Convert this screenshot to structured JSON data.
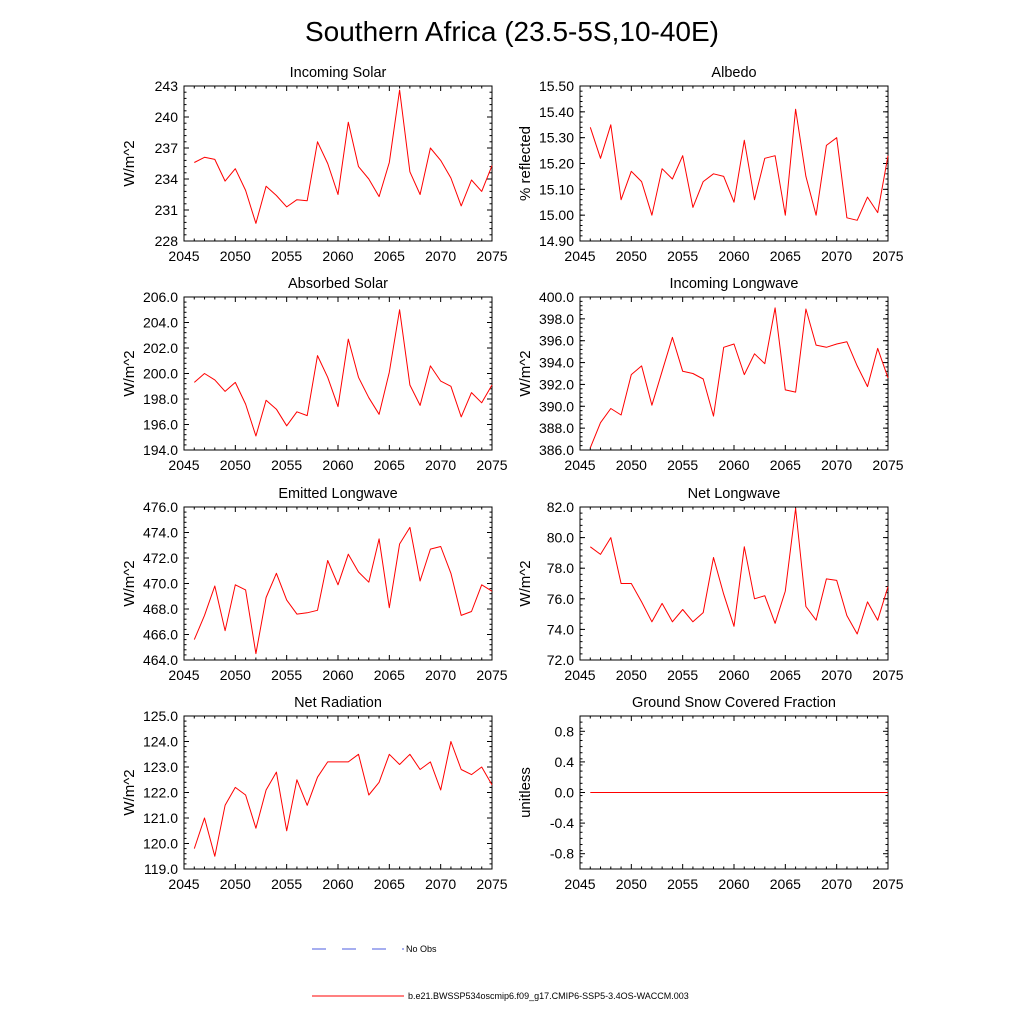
{
  "title": "Southern Africa (23.5-5S,10-40E)",
  "colors": {
    "model": "#ff0000",
    "obs": "#4d5de0",
    "axis": "#000000"
  },
  "legend": {
    "obs_label": "No Obs",
    "model_label": "b.e21.BWSSP534oscmip6.f09_g17.CMIP6-SSP5-3.4OS-WACCM.003"
  },
  "chart_data": [
    {
      "type": "line",
      "title": "Incoming Solar",
      "xlabel": "",
      "ylabel": "W/m^2",
      "xlim": [
        2045,
        2075
      ],
      "xticks": [
        2045,
        2050,
        2055,
        2060,
        2065,
        2070,
        2075
      ],
      "ylim": [
        228,
        243
      ],
      "yticks": [
        "228",
        "231",
        "234",
        "237",
        "240",
        "243"
      ],
      "x": [
        2046,
        2047,
        2048,
        2049,
        2050,
        2051,
        2052,
        2053,
        2054,
        2055,
        2056,
        2057,
        2058,
        2059,
        2060,
        2061,
        2062,
        2063,
        2064,
        2065,
        2066,
        2067,
        2068,
        2069,
        2070,
        2071,
        2072,
        2073,
        2074,
        2075
      ],
      "series": [
        {
          "name": "b.e21.BWSSP534oscmip6.f09_g17.CMIP6-SSP5-3.4OS-WACCM.003",
          "values": [
            235.6,
            236.1,
            235.9,
            233.8,
            235.0,
            232.9,
            229.7,
            233.3,
            232.4,
            231.3,
            232.0,
            231.9,
            237.6,
            235.5,
            232.5,
            239.5,
            235.2,
            234.0,
            232.3,
            235.6,
            242.6,
            234.7,
            232.5,
            237.0,
            235.8,
            234.1,
            231.4,
            233.9,
            232.8,
            235.3
          ]
        }
      ]
    },
    {
      "type": "line",
      "title": "Albedo",
      "xlabel": "",
      "ylabel": "% reflected",
      "xlim": [
        2045,
        2075
      ],
      "xticks": [
        2045,
        2050,
        2055,
        2060,
        2065,
        2070,
        2075
      ],
      "ylim": [
        14.9,
        15.5
      ],
      "yticks": [
        "14.90",
        "15.00",
        "15.10",
        "15.20",
        "15.30",
        "15.40",
        "15.50"
      ],
      "x": [
        2046,
        2047,
        2048,
        2049,
        2050,
        2051,
        2052,
        2053,
        2054,
        2055,
        2056,
        2057,
        2058,
        2059,
        2060,
        2061,
        2062,
        2063,
        2064,
        2065,
        2066,
        2067,
        2068,
        2069,
        2070,
        2071,
        2072,
        2073,
        2074,
        2075
      ],
      "series": [
        {
          "name": "b.e21.BWSSP534oscmip6.f09_g17.CMIP6-SSP5-3.4OS-WACCM.003",
          "values": [
            15.34,
            15.22,
            15.35,
            15.06,
            15.17,
            15.13,
            15.0,
            15.18,
            15.14,
            15.23,
            15.03,
            15.13,
            15.16,
            15.15,
            15.05,
            15.29,
            15.06,
            15.22,
            15.23,
            15.0,
            15.41,
            15.15,
            15.0,
            15.27,
            15.3,
            14.99,
            14.98,
            15.07,
            15.01,
            15.23
          ]
        }
      ]
    },
    {
      "type": "line",
      "title": "Absorbed Solar",
      "xlabel": "",
      "ylabel": "W/m^2",
      "xlim": [
        2045,
        2075
      ],
      "xticks": [
        2045,
        2050,
        2055,
        2060,
        2065,
        2070,
        2075
      ],
      "ylim": [
        194,
        206
      ],
      "yticks": [
        "194.0",
        "196.0",
        "198.0",
        "200.0",
        "202.0",
        "204.0",
        "206.0"
      ],
      "x": [
        2046,
        2047,
        2048,
        2049,
        2050,
        2051,
        2052,
        2053,
        2054,
        2055,
        2056,
        2057,
        2058,
        2059,
        2060,
        2061,
        2062,
        2063,
        2064,
        2065,
        2066,
        2067,
        2068,
        2069,
        2070,
        2071,
        2072,
        2073,
        2074,
        2075
      ],
      "series": [
        {
          "name": "b.e21.BWSSP534oscmip6.f09_g17.CMIP6-SSP5-3.4OS-WACCM.003",
          "values": [
            199.3,
            200.0,
            199.5,
            198.6,
            199.3,
            197.6,
            195.1,
            197.9,
            197.2,
            195.9,
            197.0,
            196.7,
            201.4,
            199.7,
            197.4,
            202.7,
            199.7,
            198.1,
            196.8,
            200.1,
            205.0,
            199.1,
            197.5,
            200.6,
            199.4,
            199.0,
            196.6,
            198.5,
            197.7,
            199.1
          ]
        }
      ]
    },
    {
      "type": "line",
      "title": "Incoming Longwave",
      "xlabel": "",
      "ylabel": "W/m^2",
      "xlim": [
        2045,
        2075
      ],
      "xticks": [
        2045,
        2050,
        2055,
        2060,
        2065,
        2070,
        2075
      ],
      "ylim": [
        386,
        400
      ],
      "yticks": [
        "386.0",
        "388.0",
        "390.0",
        "392.0",
        "394.0",
        "396.0",
        "398.0",
        "400.0"
      ],
      "x": [
        2046,
        2047,
        2048,
        2049,
        2050,
        2051,
        2052,
        2053,
        2054,
        2055,
        2056,
        2057,
        2058,
        2059,
        2060,
        2061,
        2062,
        2063,
        2064,
        2065,
        2066,
        2067,
        2068,
        2069,
        2070,
        2071,
        2072,
        2073,
        2074,
        2075
      ],
      "series": [
        {
          "name": "b.e21.BWSSP534oscmip6.f09_g17.CMIP6-SSP5-3.4OS-WACCM.003",
          "values": [
            386.2,
            388.5,
            389.8,
            389.2,
            392.9,
            393.7,
            390.1,
            393.2,
            396.3,
            393.2,
            393.0,
            392.5,
            389.1,
            395.4,
            395.7,
            392.9,
            394.8,
            393.9,
            399.0,
            391.5,
            391.3,
            398.9,
            395.6,
            395.4,
            395.7,
            395.9,
            393.7,
            391.8,
            395.3,
            392.6
          ]
        }
      ]
    },
    {
      "type": "line",
      "title": "Emitted Longwave",
      "xlabel": "",
      "ylabel": "W/m^2",
      "xlim": [
        2045,
        2075
      ],
      "xticks": [
        2045,
        2050,
        2055,
        2060,
        2065,
        2070,
        2075
      ],
      "ylim": [
        464,
        476
      ],
      "yticks": [
        "464.0",
        "466.0",
        "468.0",
        "470.0",
        "472.0",
        "474.0",
        "476.0"
      ],
      "x": [
        2046,
        2047,
        2048,
        2049,
        2050,
        2051,
        2052,
        2053,
        2054,
        2055,
        2056,
        2057,
        2058,
        2059,
        2060,
        2061,
        2062,
        2063,
        2064,
        2065,
        2066,
        2067,
        2068,
        2069,
        2070,
        2071,
        2072,
        2073,
        2074,
        2075
      ],
      "series": [
        {
          "name": "b.e21.BWSSP534oscmip6.f09_g17.CMIP6-SSP5-3.4OS-WACCM.003",
          "values": [
            465.6,
            467.5,
            469.8,
            466.3,
            469.9,
            469.5,
            464.5,
            468.9,
            470.8,
            468.7,
            467.6,
            467.7,
            467.9,
            471.8,
            469.9,
            472.3,
            470.9,
            470.1,
            473.5,
            468.1,
            473.1,
            474.4,
            470.2,
            472.7,
            472.9,
            470.8,
            467.5,
            467.8,
            469.9,
            469.4
          ]
        }
      ]
    },
    {
      "type": "line",
      "title": "Net Longwave",
      "xlabel": "",
      "ylabel": "W/m^2",
      "xlim": [
        2045,
        2075
      ],
      "xticks": [
        2045,
        2050,
        2055,
        2060,
        2065,
        2070,
        2075
      ],
      "ylim": [
        72,
        82
      ],
      "yticks": [
        "72.0",
        "74.0",
        "76.0",
        "78.0",
        "80.0",
        "82.0"
      ],
      "x": [
        2046,
        2047,
        2048,
        2049,
        2050,
        2051,
        2052,
        2053,
        2054,
        2055,
        2056,
        2057,
        2058,
        2059,
        2060,
        2061,
        2062,
        2063,
        2064,
        2065,
        2066,
        2067,
        2068,
        2069,
        2070,
        2071,
        2072,
        2073,
        2074,
        2075
      ],
      "series": [
        {
          "name": "b.e21.BWSSP534oscmip6.f09_g17.CMIP6-SSP5-3.4OS-WACCM.003",
          "values": [
            79.4,
            78.9,
            80.0,
            77.0,
            77.0,
            75.8,
            74.5,
            75.7,
            74.5,
            75.3,
            74.5,
            75.1,
            78.7,
            76.3,
            74.2,
            79.4,
            76.0,
            76.2,
            74.4,
            76.5,
            81.9,
            75.5,
            74.6,
            77.3,
            77.2,
            74.9,
            73.7,
            75.8,
            74.6,
            76.8
          ]
        }
      ]
    },
    {
      "type": "line",
      "title": "Net Radiation",
      "xlabel": "",
      "ylabel": "W/m^2",
      "xlim": [
        2045,
        2075
      ],
      "xticks": [
        2045,
        2050,
        2055,
        2060,
        2065,
        2070,
        2075
      ],
      "ylim": [
        119,
        125
      ],
      "yticks": [
        "119.0",
        "120.0",
        "121.0",
        "122.0",
        "123.0",
        "124.0",
        "125.0"
      ],
      "x": [
        2046,
        2047,
        2048,
        2049,
        2050,
        2051,
        2052,
        2053,
        2054,
        2055,
        2056,
        2057,
        2058,
        2059,
        2060,
        2061,
        2062,
        2063,
        2064,
        2065,
        2066,
        2067,
        2068,
        2069,
        2070,
        2071,
        2072,
        2073,
        2074,
        2075
      ],
      "series": [
        {
          "name": "b.e21.BWSSP534oscmip6.f09_g17.CMIP6-SSP5-3.4OS-WACCM.003",
          "values": [
            119.8,
            121.0,
            119.5,
            121.5,
            122.2,
            121.9,
            120.6,
            122.1,
            122.8,
            120.5,
            122.5,
            121.5,
            122.6,
            123.2,
            123.2,
            123.2,
            123.5,
            121.9,
            122.4,
            123.5,
            123.1,
            123.5,
            122.9,
            123.2,
            122.1,
            124.0,
            122.9,
            122.7,
            123.0,
            122.3
          ]
        }
      ]
    },
    {
      "type": "line",
      "title": "Ground Snow Covered Fraction",
      "xlabel": "",
      "ylabel": "unitless",
      "xlim": [
        2045,
        2075
      ],
      "xticks": [
        2045,
        2050,
        2055,
        2060,
        2065,
        2070,
        2075
      ],
      "ylim": [
        -1,
        1
      ],
      "yticks": [
        "-0.8",
        "-0.4",
        "0.0",
        "0.4",
        "0.8"
      ],
      "x": [
        2046,
        2047,
        2048,
        2049,
        2050,
        2051,
        2052,
        2053,
        2054,
        2055,
        2056,
        2057,
        2058,
        2059,
        2060,
        2061,
        2062,
        2063,
        2064,
        2065,
        2066,
        2067,
        2068,
        2069,
        2070,
        2071,
        2072,
        2073,
        2074,
        2075
      ],
      "series": [
        {
          "name": "b.e21.BWSSP534oscmip6.f09_g17.CMIP6-SSP5-3.4OS-WACCM.003",
          "values": [
            0,
            0,
            0,
            0,
            0,
            0,
            0,
            0,
            0,
            0,
            0,
            0,
            0,
            0,
            0,
            0,
            0,
            0,
            0,
            0,
            0,
            0,
            0,
            0,
            0,
            0,
            0,
            0,
            0,
            0
          ]
        }
      ]
    }
  ]
}
